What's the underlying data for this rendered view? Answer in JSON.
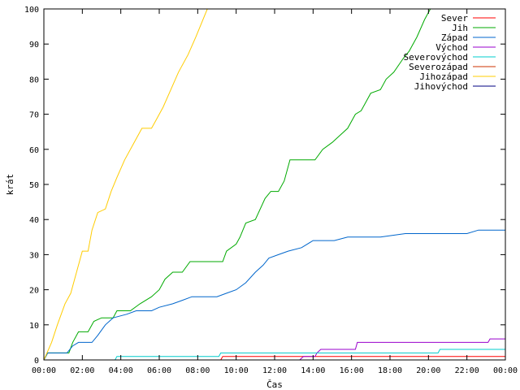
{
  "chart_data": {
    "type": "line",
    "xlabel": "Čas",
    "ylabel": "krát",
    "xlim": [
      0,
      24
    ],
    "ylim": [
      0,
      100
    ],
    "x_ticks": [
      0,
      2,
      4,
      6,
      8,
      10,
      12,
      14,
      16,
      18,
      20,
      22,
      24
    ],
    "x_tick_labels": [
      "00:00",
      "02:00",
      "04:00",
      "06:00",
      "08:00",
      "10:00",
      "12:00",
      "14:00",
      "16:00",
      "18:00",
      "20:00",
      "22:00",
      "00:00"
    ],
    "y_ticks": [
      0,
      10,
      20,
      30,
      40,
      50,
      60,
      70,
      80,
      90,
      100
    ],
    "grid": false,
    "legend_position": "top-right",
    "series": [
      {
        "name": "Sever",
        "color": "#ff0000",
        "points": [
          [
            0,
            0
          ],
          [
            9.2,
            0
          ],
          [
            9.3,
            1
          ],
          [
            24,
            1
          ]
        ]
      },
      {
        "name": "Jih",
        "color": "#00aa00",
        "points": [
          [
            0,
            0
          ],
          [
            0.2,
            2
          ],
          [
            1.3,
            2
          ],
          [
            1.5,
            5
          ],
          [
            1.8,
            8
          ],
          [
            2.3,
            8
          ],
          [
            2.6,
            11
          ],
          [
            3,
            12
          ],
          [
            3.6,
            12
          ],
          [
            3.8,
            14
          ],
          [
            4.5,
            14
          ],
          [
            5,
            16
          ],
          [
            5.6,
            18
          ],
          [
            6,
            20
          ],
          [
            6.3,
            23
          ],
          [
            6.7,
            25
          ],
          [
            7.2,
            25
          ],
          [
            7.6,
            28
          ],
          [
            8.5,
            28
          ],
          [
            9.3,
            28
          ],
          [
            9.5,
            31
          ],
          [
            10,
            33
          ],
          [
            10.2,
            35
          ],
          [
            10.5,
            39
          ],
          [
            11,
            40
          ],
          [
            11.5,
            46
          ],
          [
            11.8,
            48
          ],
          [
            12.2,
            48
          ],
          [
            12.5,
            51
          ],
          [
            12.8,
            57
          ],
          [
            14.1,
            57
          ],
          [
            14.5,
            60
          ],
          [
            15,
            62
          ],
          [
            15.4,
            64
          ],
          [
            15.8,
            66
          ],
          [
            16.2,
            70
          ],
          [
            16.5,
            71
          ],
          [
            17,
            76
          ],
          [
            17.5,
            77
          ],
          [
            17.8,
            80
          ],
          [
            18.2,
            82
          ],
          [
            18.7,
            86
          ],
          [
            19,
            88
          ],
          [
            19.4,
            92
          ],
          [
            19.8,
            97
          ],
          [
            20.1,
            100
          ]
        ]
      },
      {
        "name": "Západ",
        "color": "#0066cc",
        "points": [
          [
            0,
            0
          ],
          [
            0.2,
            2
          ],
          [
            1.2,
            2
          ],
          [
            1.5,
            4
          ],
          [
            1.8,
            5
          ],
          [
            2.5,
            5
          ],
          [
            2.8,
            7
          ],
          [
            3.2,
            10
          ],
          [
            3.6,
            12
          ],
          [
            4.3,
            13
          ],
          [
            4.8,
            14
          ],
          [
            5.6,
            14
          ],
          [
            6,
            15
          ],
          [
            6.7,
            16
          ],
          [
            7.2,
            17
          ],
          [
            7.7,
            18
          ],
          [
            9,
            18
          ],
          [
            9.5,
            19
          ],
          [
            10,
            20
          ],
          [
            10.5,
            22
          ],
          [
            11,
            25
          ],
          [
            11.4,
            27
          ],
          [
            11.7,
            29
          ],
          [
            12.2,
            30
          ],
          [
            12.7,
            31
          ],
          [
            13.4,
            32
          ],
          [
            14,
            34
          ],
          [
            15.1,
            34
          ],
          [
            15.8,
            35
          ],
          [
            17.5,
            35
          ],
          [
            18.8,
            36
          ],
          [
            22,
            36
          ],
          [
            22.6,
            37
          ],
          [
            24,
            37
          ]
        ]
      },
      {
        "name": "Východ",
        "color": "#9900cc",
        "points": [
          [
            0,
            0
          ],
          [
            13.3,
            0
          ],
          [
            13.5,
            1
          ],
          [
            14.1,
            1
          ],
          [
            14.2,
            2
          ],
          [
            14.4,
            3
          ],
          [
            16.2,
            3
          ],
          [
            16.3,
            5
          ],
          [
            23.1,
            5
          ],
          [
            23.2,
            6
          ],
          [
            24,
            6
          ]
        ]
      },
      {
        "name": "Severovýchod",
        "color": "#00cccc",
        "points": [
          [
            0,
            0
          ],
          [
            3.7,
            0
          ],
          [
            3.8,
            1
          ],
          [
            9.1,
            1
          ],
          [
            9.2,
            2
          ],
          [
            20.5,
            2
          ],
          [
            20.6,
            3
          ],
          [
            24,
            3
          ]
        ]
      },
      {
        "name": "Severozápad",
        "color": "#cc3300",
        "points": [
          [
            0,
            0
          ],
          [
            24,
            0
          ]
        ]
      },
      {
        "name": "Jihozápad",
        "color": "#ffcc00",
        "points": [
          [
            0,
            0
          ],
          [
            0.4,
            5
          ],
          [
            0.7,
            10
          ],
          [
            1.1,
            16
          ],
          [
            1.4,
            19
          ],
          [
            1.7,
            25
          ],
          [
            2,
            31
          ],
          [
            2.3,
            31
          ],
          [
            2.5,
            37
          ],
          [
            2.8,
            42
          ],
          [
            3.2,
            43
          ],
          [
            3.5,
            48
          ],
          [
            3.8,
            52
          ],
          [
            4.2,
            57
          ],
          [
            4.7,
            62
          ],
          [
            5.1,
            66
          ],
          [
            5.6,
            66
          ],
          [
            5.8,
            68
          ],
          [
            6.2,
            72
          ],
          [
            6.6,
            77
          ],
          [
            7,
            82
          ],
          [
            7.5,
            87
          ],
          [
            7.9,
            92
          ],
          [
            8.2,
            96
          ],
          [
            8.5,
            100
          ]
        ]
      },
      {
        "name": "Jihovýchod",
        "color": "#000080",
        "points": [
          [
            0,
            0
          ],
          [
            24,
            0
          ]
        ]
      }
    ]
  }
}
